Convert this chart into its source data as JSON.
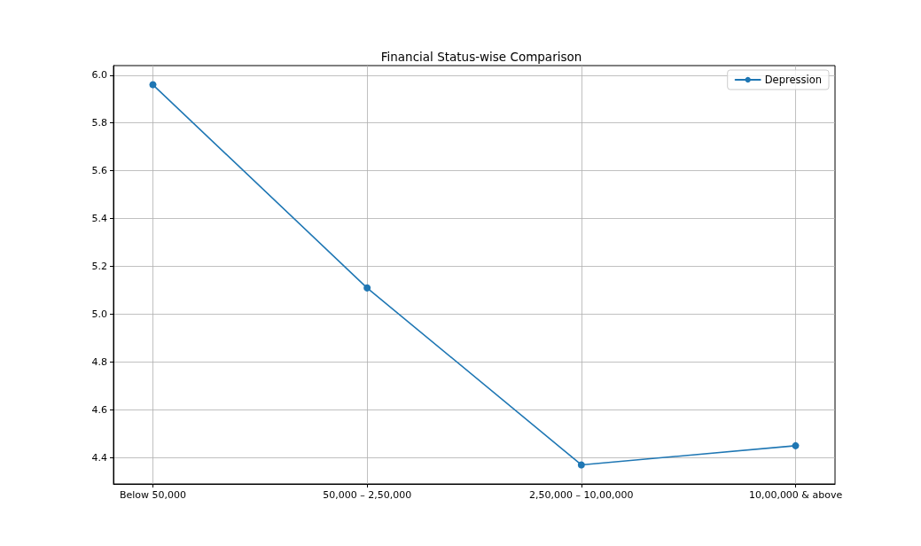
{
  "chart_data": {
    "type": "line",
    "title": "Financial Status-wise Comparison",
    "categories": [
      "Below 50,000",
      "50,000 – 2,50,000",
      "2,50,000 – 10,00,000",
      "10,00,000 & above"
    ],
    "series": [
      {
        "name": "Depression",
        "color": "#1f77b4",
        "values": [
          5.96,
          5.11,
          4.37,
          4.45
        ]
      }
    ],
    "ylim": [
      4.29,
      6.04
    ],
    "yticks": [
      4.4,
      4.6,
      4.8,
      {
        "value": 5,
        "label": "5.0"
      },
      5.2,
      5.4,
      5.6,
      5.8,
      {
        "value": 6,
        "label": "6.0"
      }
    ],
    "grid": true,
    "legend": "top right",
    "marker": "circle",
    "line_style": "solid"
  }
}
